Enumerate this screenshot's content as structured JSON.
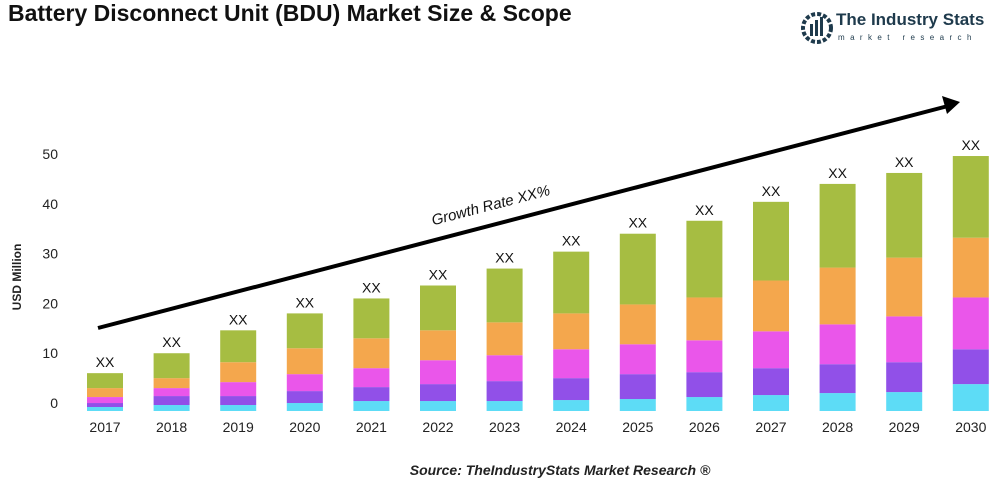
{
  "title": "Battery Disconnect Unit (BDU) Market Size & Scope",
  "logo": {
    "name": "The Industry Stats",
    "tagline": "market research"
  },
  "source": "Source: TheIndustryStats Market Research ®",
  "chart_data": {
    "type": "bar",
    "stacked": true,
    "title": "Battery Disconnect Unit (BDU) Market Size & Scope",
    "xlabel": "",
    "ylabel": "USD Million",
    "ylim": [
      0,
      50
    ],
    "yticks": [
      0,
      10,
      20,
      30,
      40,
      50
    ],
    "grid": false,
    "categories": [
      "2017",
      "2018",
      "2019",
      "2020",
      "2021",
      "2022",
      "2023",
      "2024",
      "2025",
      "2026",
      "2027",
      "2028",
      "2029",
      "2030"
    ],
    "data_labels": [
      "XX",
      "XX",
      "XX",
      "XX",
      "XX",
      "XX",
      "XX",
      "XX",
      "XX",
      "XX",
      "XX",
      "XX",
      "XX",
      "XX"
    ],
    "annotation": "Growth Rate XX%",
    "series": [
      {
        "color": "#5ddcf6",
        "values": [
          0.8,
          1.2,
          1.2,
          1.6,
          2.0,
          2.0,
          2.0,
          2.2,
          2.4,
          2.8,
          3.2,
          3.6,
          3.8,
          5.4
        ]
      },
      {
        "color": "#9150e8",
        "values": [
          0.8,
          1.8,
          1.8,
          2.4,
          2.8,
          3.4,
          4.0,
          4.4,
          5.0,
          5.0,
          5.4,
          5.8,
          6.0,
          7.0
        ]
      },
      {
        "color": "#ea56ea",
        "values": [
          1.2,
          1.6,
          2.8,
          3.4,
          3.8,
          4.8,
          5.2,
          5.8,
          6.0,
          6.4,
          7.4,
          8.0,
          9.2,
          10.4
        ]
      },
      {
        "color": "#f4a74d",
        "values": [
          1.8,
          2.0,
          4.0,
          5.2,
          6.0,
          6.0,
          6.6,
          7.2,
          8.0,
          8.6,
          10.2,
          11.4,
          11.8,
          12.0
        ]
      },
      {
        "color": "#a6bd42",
        "values": [
          3.0,
          5.0,
          6.4,
          7.0,
          8.0,
          9.0,
          10.8,
          12.4,
          14.2,
          15.4,
          15.8,
          16.8,
          17.0,
          16.4
        ]
      }
    ]
  }
}
